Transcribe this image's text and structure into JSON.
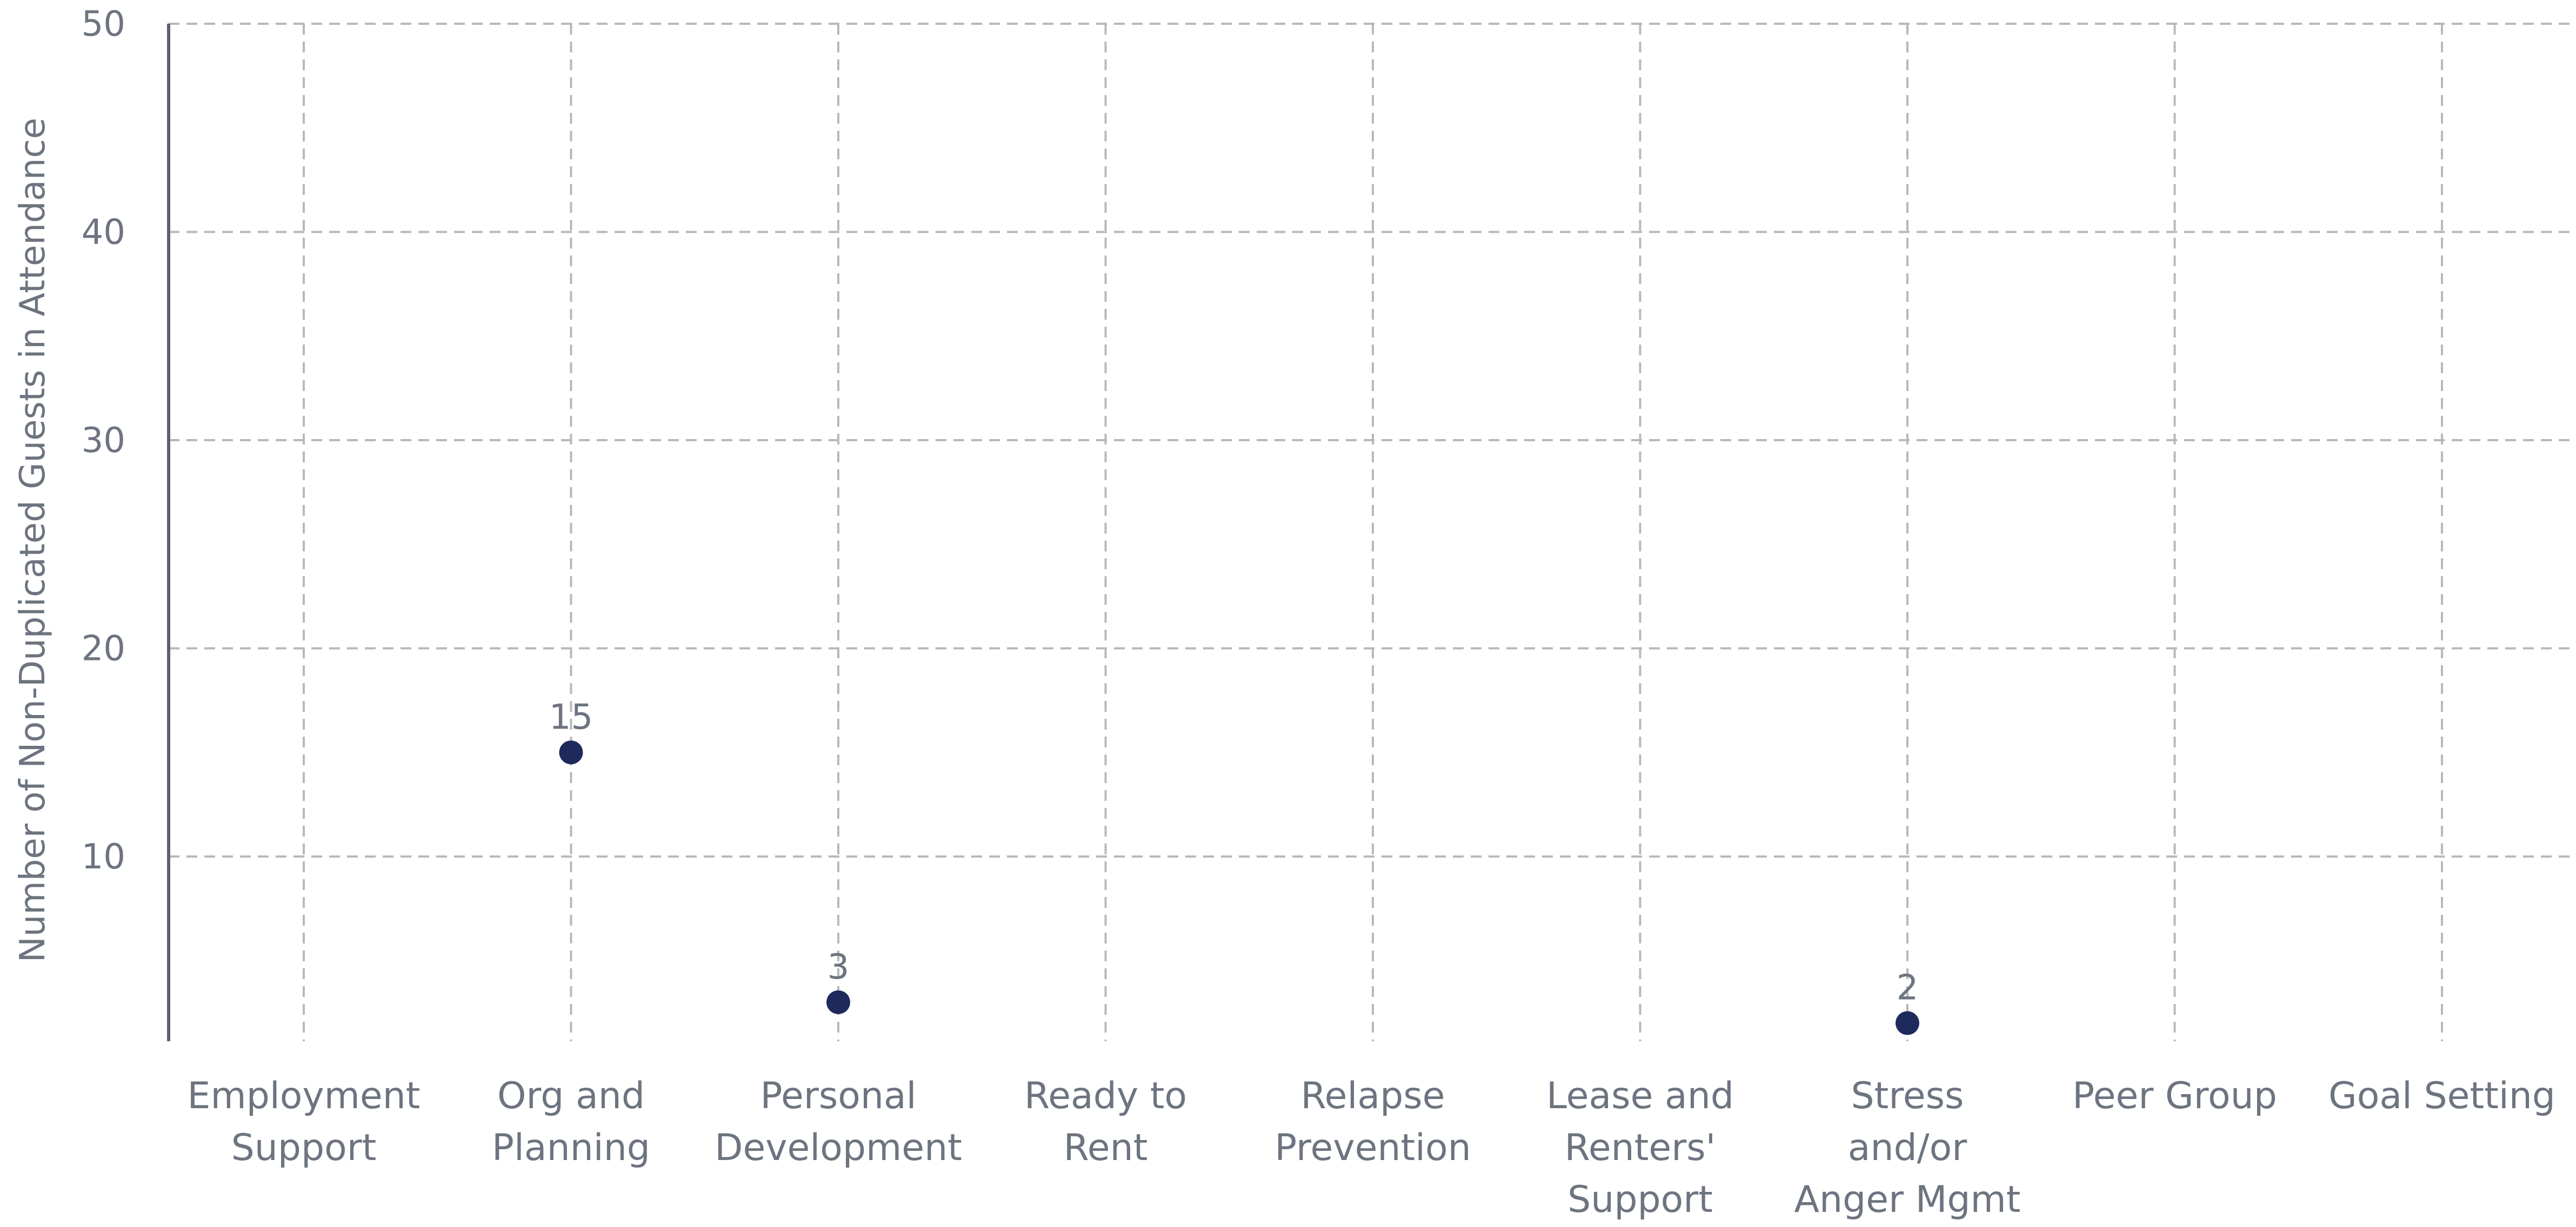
{
  "chart_data": {
    "type": "scatter",
    "ylabel": "Number of Non-Duplicated Guests in Attendance",
    "xlabel": "",
    "title": "",
    "ylim": [
      0,
      50
    ],
    "yticks": [
      10,
      20,
      30,
      40,
      50
    ],
    "grid": true,
    "categories": [
      [
        "Employment",
        "Support"
      ],
      [
        "Org and",
        "Planning"
      ],
      [
        "Personal",
        "Development"
      ],
      [
        "Ready to",
        "Rent"
      ],
      [
        "Relapse",
        "Prevention"
      ],
      [
        "Lease and",
        "Renters'",
        "Support"
      ],
      [
        "Stress",
        "and/or",
        "Anger Mgmt"
      ],
      [
        "Peer Group"
      ],
      [
        "Goal Setting"
      ]
    ],
    "series": [
      {
        "values": [
          null,
          15,
          3,
          null,
          null,
          null,
          2,
          null,
          null
        ],
        "data_labels": [
          "",
          "15",
          "3",
          "",
          "",
          "",
          "2",
          "",
          ""
        ],
        "color": "#1f2a5c"
      }
    ]
  }
}
